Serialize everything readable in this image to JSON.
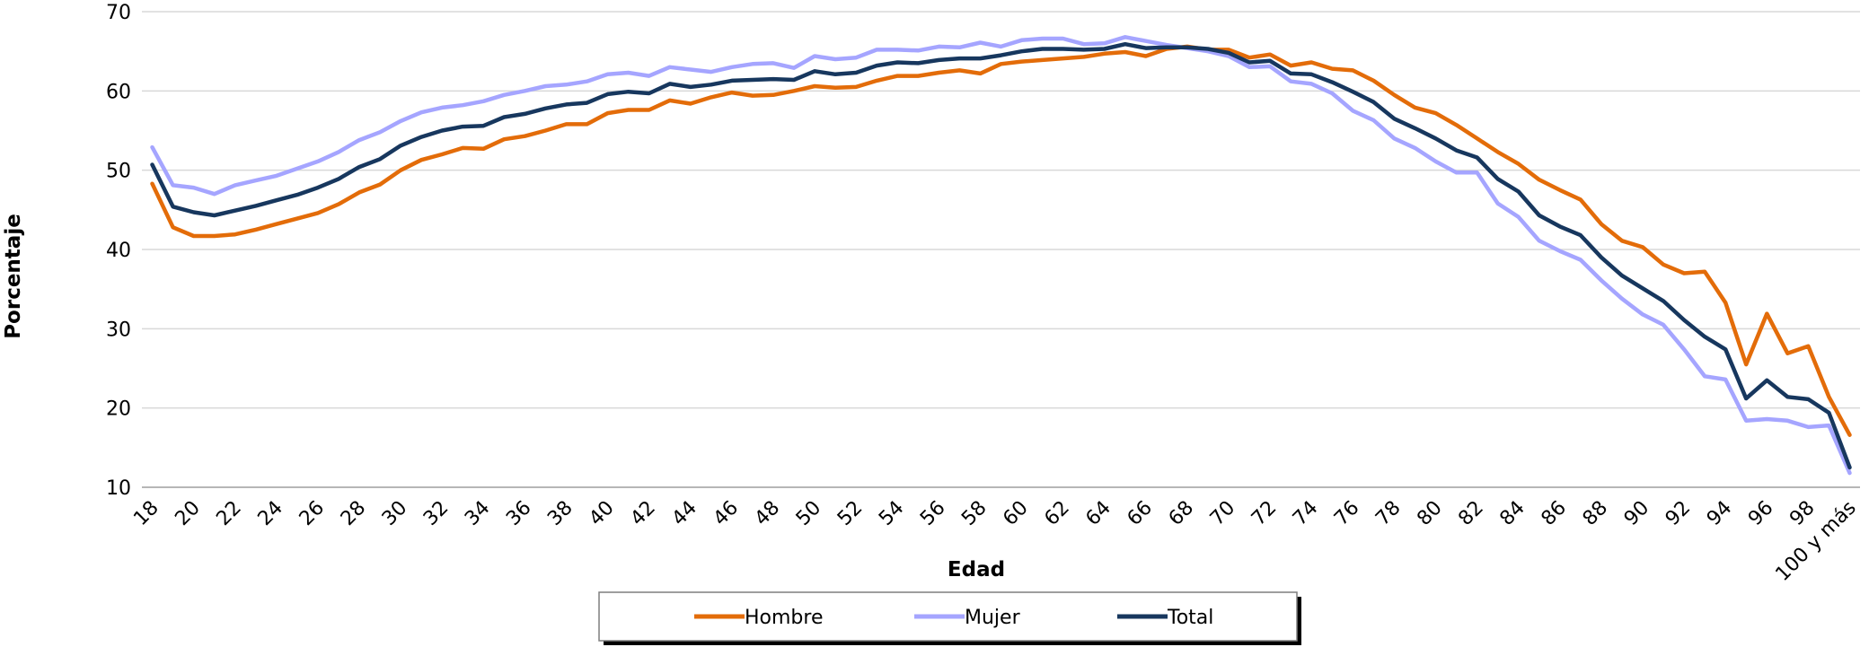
{
  "chart_data": {
    "type": "line",
    "title": "",
    "xlabel": "Edad",
    "ylabel": "Porcentaje",
    "ylim": [
      10,
      70
    ],
    "yticks": [
      10,
      20,
      30,
      40,
      50,
      60,
      70
    ],
    "grid": "horizontal",
    "legend_position": "bottom",
    "x": [
      "18",
      "19",
      "20",
      "21",
      "22",
      "23",
      "24",
      "25",
      "26",
      "27",
      "28",
      "29",
      "30",
      "31",
      "32",
      "33",
      "34",
      "35",
      "36",
      "37",
      "38",
      "39",
      "40",
      "41",
      "42",
      "43",
      "44",
      "45",
      "46",
      "47",
      "48",
      "49",
      "50",
      "51",
      "52",
      "53",
      "54",
      "55",
      "56",
      "57",
      "58",
      "59",
      "60",
      "61",
      "62",
      "63",
      "64",
      "65",
      "66",
      "67",
      "68",
      "69",
      "70",
      "71",
      "72",
      "73",
      "74",
      "75",
      "76",
      "77",
      "78",
      "79",
      "80",
      "81",
      "82",
      "83",
      "84",
      "85",
      "86",
      "87",
      "88",
      "89",
      "90",
      "91",
      "92",
      "93",
      "94",
      "95",
      "96",
      "97",
      "98",
      "99",
      "100 y más"
    ],
    "x_tick_labels": [
      "18",
      "20",
      "22",
      "24",
      "26",
      "28",
      "30",
      "32",
      "34",
      "36",
      "38",
      "40",
      "42",
      "44",
      "46",
      "48",
      "50",
      "52",
      "54",
      "56",
      "58",
      "60",
      "62",
      "64",
      "66",
      "68",
      "70",
      "72",
      "74",
      "76",
      "78",
      "80",
      "82",
      "84",
      "86",
      "88",
      "90",
      "92",
      "94",
      "96",
      "98",
      "100 y más"
    ],
    "series": [
      {
        "name": "Hombre",
        "color": "#E36C09",
        "values": [
          48.3,
          42.8,
          41.7,
          41.7,
          41.9,
          42.5,
          43.2,
          43.9,
          44.6,
          45.7,
          47.2,
          48.2,
          50.0,
          51.3,
          52.0,
          52.8,
          52.7,
          53.9,
          54.3,
          55.0,
          55.8,
          55.8,
          57.2,
          57.6,
          57.6,
          58.8,
          58.4,
          59.2,
          59.8,
          59.4,
          59.5,
          60.0,
          60.6,
          60.4,
          60.5,
          61.3,
          61.9,
          61.9,
          62.3,
          62.6,
          62.2,
          63.4,
          63.7,
          63.9,
          64.1,
          64.3,
          64.7,
          64.9,
          64.4,
          65.3,
          65.6,
          65.2,
          65.2,
          64.2,
          64.6,
          63.2,
          63.6,
          62.8,
          62.6,
          61.3,
          59.5,
          57.9,
          57.2,
          55.7,
          54.0,
          52.3,
          50.8,
          48.8,
          47.5,
          46.3,
          43.2,
          41.1,
          40.3,
          38.1,
          37.0,
          37.2,
          33.3,
          25.5,
          31.9,
          26.9,
          27.8,
          21.4,
          16.6
        ]
      },
      {
        "name": "Mujer",
        "color": "#A5A5FF",
        "values": [
          52.9,
          48.1,
          47.8,
          47.0,
          48.1,
          48.7,
          49.3,
          50.2,
          51.1,
          52.3,
          53.8,
          54.8,
          56.2,
          57.3,
          57.9,
          58.2,
          58.7,
          59.5,
          60.0,
          60.6,
          60.8,
          61.2,
          62.1,
          62.3,
          61.9,
          63.0,
          62.7,
          62.4,
          63.0,
          63.4,
          63.5,
          62.9,
          64.4,
          64.0,
          64.2,
          65.2,
          65.2,
          65.1,
          65.6,
          65.5,
          66.1,
          65.6,
          66.4,
          66.6,
          66.6,
          65.9,
          66.0,
          66.8,
          66.3,
          65.8,
          65.4,
          65.0,
          64.4,
          63.0,
          63.1,
          61.2,
          60.9,
          59.7,
          57.5,
          56.3,
          54.0,
          52.8,
          51.1,
          49.7,
          49.7,
          45.8,
          44.1,
          41.1,
          39.8,
          38.7,
          36.1,
          33.8,
          31.8,
          30.5,
          27.4,
          24.0,
          23.6,
          18.4,
          18.6,
          18.4,
          17.6,
          17.8,
          11.8
        ]
      },
      {
        "name": "Total",
        "color": "#17375E",
        "values": [
          50.7,
          45.4,
          44.7,
          44.3,
          44.9,
          45.5,
          46.2,
          46.9,
          47.8,
          48.9,
          50.4,
          51.4,
          53.1,
          54.2,
          55.0,
          55.5,
          55.6,
          56.7,
          57.1,
          57.8,
          58.3,
          58.5,
          59.6,
          59.9,
          59.7,
          60.9,
          60.5,
          60.8,
          61.3,
          61.4,
          61.5,
          61.4,
          62.5,
          62.1,
          62.3,
          63.2,
          63.6,
          63.5,
          63.9,
          64.1,
          64.1,
          64.5,
          65.0,
          65.3,
          65.3,
          65.2,
          65.3,
          65.9,
          65.4,
          65.5,
          65.5,
          65.3,
          64.8,
          63.6,
          63.8,
          62.2,
          62.1,
          61.1,
          59.9,
          58.6,
          56.5,
          55.3,
          54.0,
          52.5,
          51.6,
          48.9,
          47.3,
          44.3,
          42.9,
          41.8,
          39.0,
          36.7,
          35.1,
          33.5,
          31.1,
          29.0,
          27.4,
          21.2,
          23.5,
          21.4,
          21.1,
          19.4,
          12.5
        ]
      }
    ]
  }
}
